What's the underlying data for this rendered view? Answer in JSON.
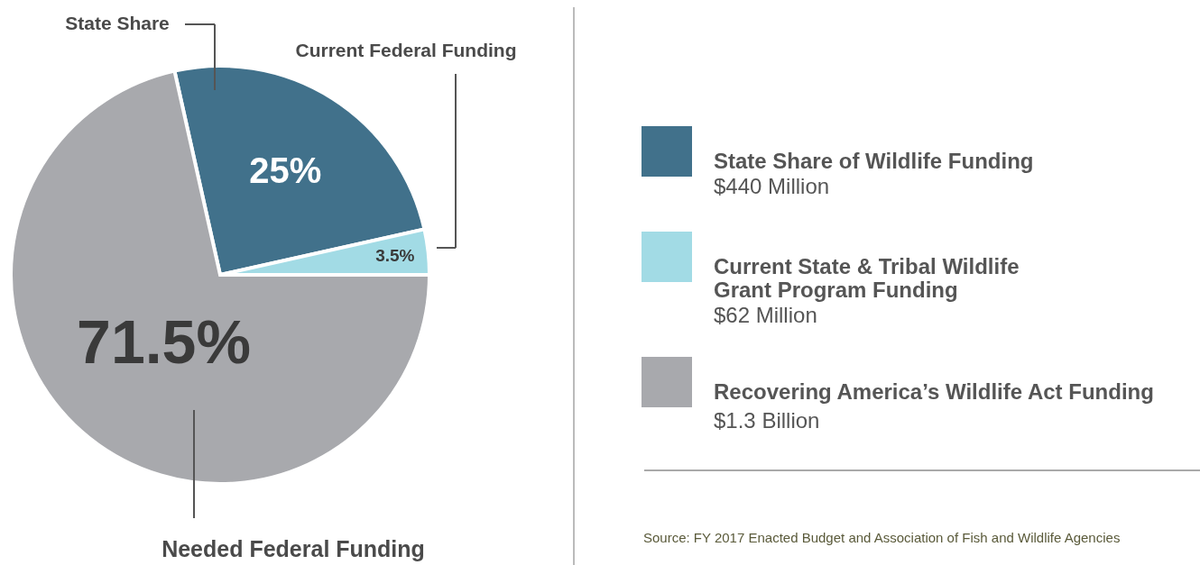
{
  "chart_data": {
    "type": "pie",
    "categories": [
      "State Share of Wildlife Funding",
      "Current State & Tribal Wildlife\nGrant Program Funding",
      "Recovering America’s Wildlife Act Funding"
    ],
    "values": [
      25,
      3.5,
      71.5
    ],
    "value_labels": [
      "25%",
      "3.5%",
      "71.5%"
    ],
    "colors": [
      "#41718b",
      "#a2dbe5",
      "#a8a9ad"
    ],
    "legend": "right",
    "annotations": [
      "State Share",
      "Current Federal Funding",
      "Needed Federal Funding",
      "$440 Million",
      "$62 Million",
      "$1.3 Billion",
      "Source: FY 2017 Enacted Budget and Association of Fish and Wildlife Agencies"
    ]
  }
}
